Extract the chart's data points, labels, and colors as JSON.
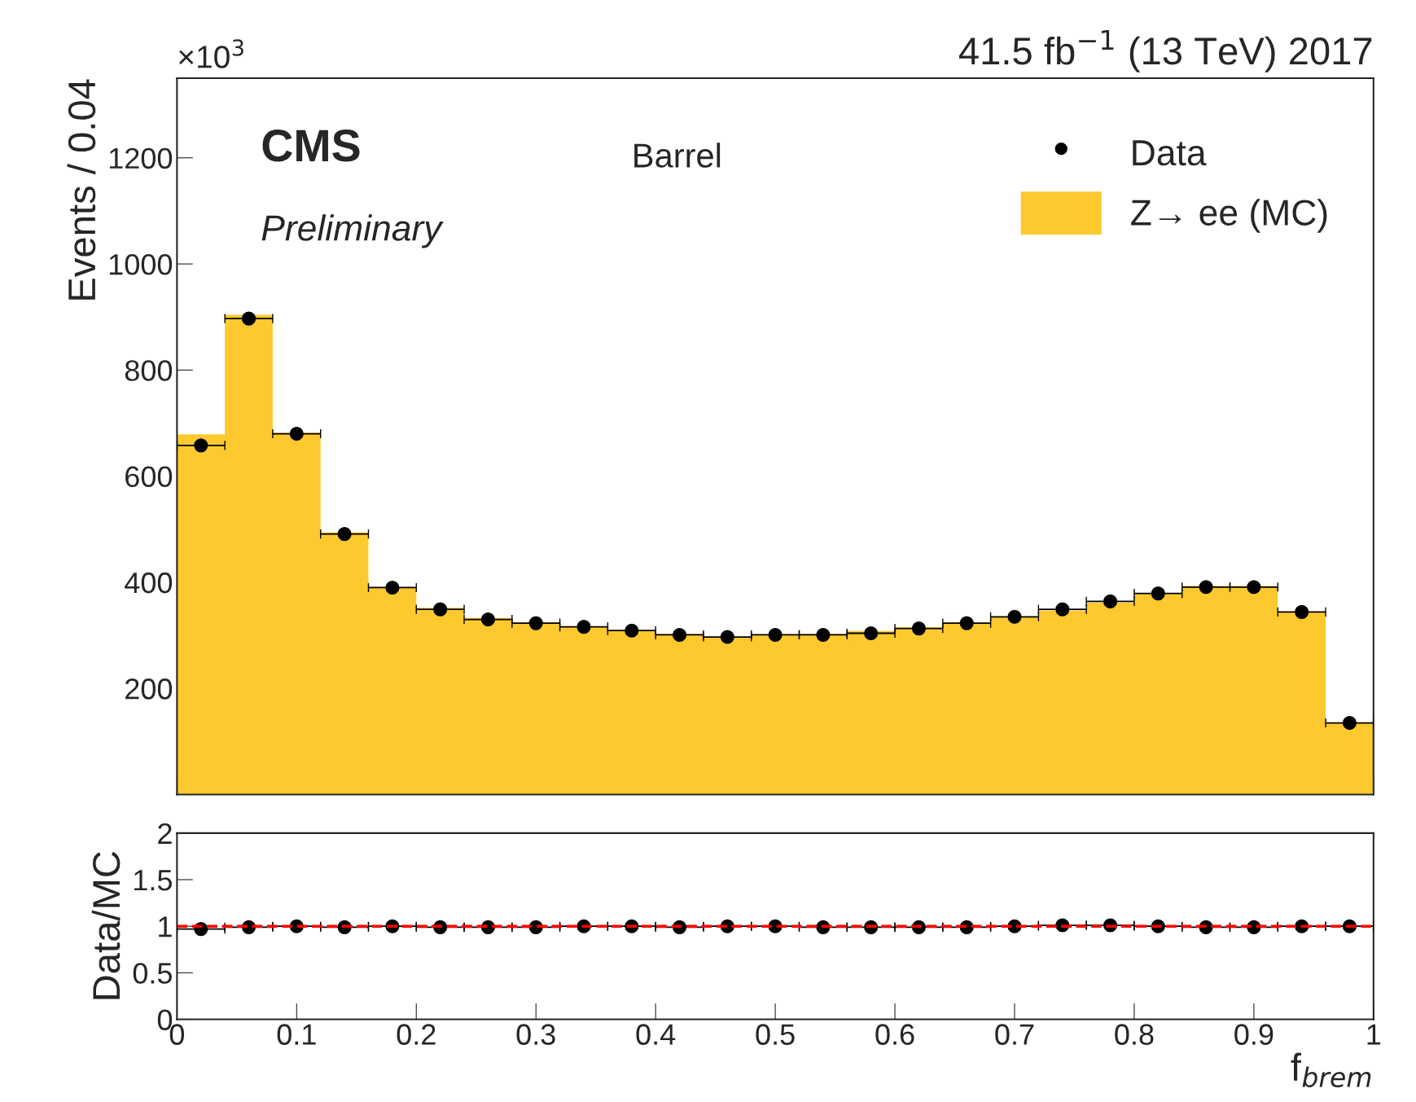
{
  "chart_data": [
    {
      "type": "histogram",
      "title": "41.5 fb$^{−1}$ (13 TeV) 2017",
      "ylabel": "Events / 0.04",
      "annotations": [
        "×10$^{3}$",
        "CMS",
        "Preliminary",
        "Barrel"
      ],
      "bins": [
        0,
        0.04,
        0.08,
        0.12,
        0.16,
        0.2,
        0.24,
        0.28,
        0.32,
        0.36,
        0.4,
        0.44,
        0.48,
        0.52,
        0.56,
        0.6,
        0.64,
        0.68,
        0.72,
        0.76,
        0.8,
        0.84,
        0.88,
        0.92,
        0.96,
        1
      ],
      "series": [
        {
          "name": "Data",
          "type": "scatter",
          "color": "#000000",
          "x": [
            0.02,
            0.06,
            0.1,
            0.14,
            0.18,
            0.22,
            0.26,
            0.3,
            0.34,
            0.38,
            0.42,
            0.46,
            0.5,
            0.54,
            0.58,
            0.62,
            0.66,
            0.7,
            0.74,
            0.78,
            0.82,
            0.86,
            0.9,
            0.94,
            0.98
          ],
          "values": [
            658,
            897,
            680,
            491,
            390,
            349,
            330,
            323,
            316,
            309,
            301,
            297,
            301,
            301,
            304,
            313,
            323,
            335,
            349,
            364,
            379,
            391,
            391,
            344,
            135
          ],
          "xerrors": [
            0.02,
            0.02,
            0.02,
            0.02,
            0.02,
            0.02,
            0.02,
            0.02,
            0.02,
            0.02,
            0.02,
            0.02,
            0.02,
            0.02,
            0.02,
            0.02,
            0.02,
            0.02,
            0.02,
            0.02,
            0.02,
            0.02,
            0.02,
            0.02,
            0.02
          ]
        },
        {
          "name": "Z→ ee (MC)",
          "type": "histogram",
          "color": "#fdc92f",
          "values": [
            679,
            904,
            682,
            494,
            391,
            352,
            333,
            325,
            316,
            309,
            303,
            297,
            301,
            303,
            308,
            315,
            325,
            335,
            347,
            362,
            379,
            393,
            393,
            345,
            135
          ]
        }
      ],
      "xlim": [
        0,
        1
      ],
      "xticks": [
        0,
        0.1,
        0.2,
        0.3,
        0.4,
        0.5,
        0.6,
        0.7,
        0.8,
        0.9,
        1
      ],
      "ylim": [
        0,
        1350
      ],
      "yticks": [
        200,
        400,
        600,
        800,
        1000,
        1200
      ],
      "tick_labels": "y",
      "legend": "top right",
      "marker": "circle",
      "grid": false
    },
    {
      "type": "scatter",
      "ylabel": "Data/MC",
      "xlabel": "f$_{brem}$",
      "x": [
        0.02,
        0.06,
        0.1,
        0.14,
        0.18,
        0.22,
        0.26,
        0.3,
        0.34,
        0.38,
        0.42,
        0.46,
        0.5,
        0.54,
        0.58,
        0.62,
        0.66,
        0.7,
        0.74,
        0.78,
        0.82,
        0.86,
        0.9,
        0.94,
        0.98
      ],
      "series": [
        {
          "color": "#000000",
          "values": [
            0.97,
            0.99,
            1.0,
            0.99,
            1.0,
            0.99,
            0.99,
            0.99,
            1.0,
            1.0,
            0.99,
            1.0,
            1.0,
            0.99,
            0.99,
            0.99,
            0.99,
            1.0,
            1.01,
            1.01,
            1.0,
            0.99,
            0.99,
            1.0,
            1.0
          ],
          "xerrors": [
            0.02,
            0.02,
            0.02,
            0.02,
            0.02,
            0.02,
            0.02,
            0.02,
            0.02,
            0.02,
            0.02,
            0.02,
            0.02,
            0.02,
            0.02,
            0.02,
            0.02,
            0.02,
            0.02,
            0.02,
            0.02,
            0.02,
            0.02,
            0.02,
            0.02
          ]
        }
      ],
      "xlim": [
        0,
        1
      ],
      "xticks": [
        0,
        0.1,
        0.2,
        0.3,
        0.4,
        0.5,
        0.6,
        0.7,
        0.8,
        0.9,
        1
      ],
      "ylim": [
        0,
        2
      ],
      "yticks": [
        0,
        0.5,
        1,
        1.5,
        2
      ],
      "ref_lines": [
        {
          "axis": "y",
          "value": 1,
          "color": "#ff0000",
          "line_style": "dashed"
        }
      ],
      "marker": "circle",
      "grid": false
    }
  ]
}
